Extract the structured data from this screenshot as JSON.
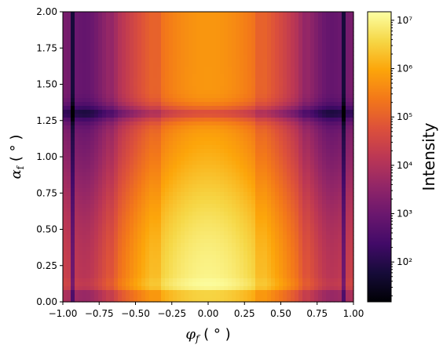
{
  "chart_data": {
    "type": "heatmap",
    "title": "",
    "xlabel": "φ_f (°)",
    "ylabel": "α_f (°)",
    "xlim": [
      -1.0,
      1.0
    ],
    "ylim": [
      0.0,
      2.0
    ],
    "x_ticks": [
      "−1.00",
      "−0.75",
      "−0.50",
      "−0.25",
      "0.00",
      "0.25",
      "0.50",
      "0.75",
      "1.00"
    ],
    "y_ticks": [
      "0.00",
      "0.25",
      "0.50",
      "0.75",
      "1.00",
      "1.25",
      "1.50",
      "1.75",
      "2.00"
    ],
    "colormap": "inferno",
    "colorbar": {
      "label": "Intensity",
      "scale": "log",
      "range": [
        15,
        15000000
      ],
      "ticks": [
        "10²",
        "10³",
        "10⁴",
        "10⁵",
        "10⁶",
        "10⁷"
      ],
      "tick_values": [
        100,
        1000,
        10000,
        100000,
        1000000,
        10000000
      ]
    },
    "features": {
      "peak_intensity": 10000000,
      "peak_alpha": 0.12,
      "horizontal_minimum_alpha": 1.3,
      "vertical_minima_phi": [
        -0.93,
        -0.65,
        -0.35,
        0.35,
        0.65,
        0.93
      ]
    }
  }
}
